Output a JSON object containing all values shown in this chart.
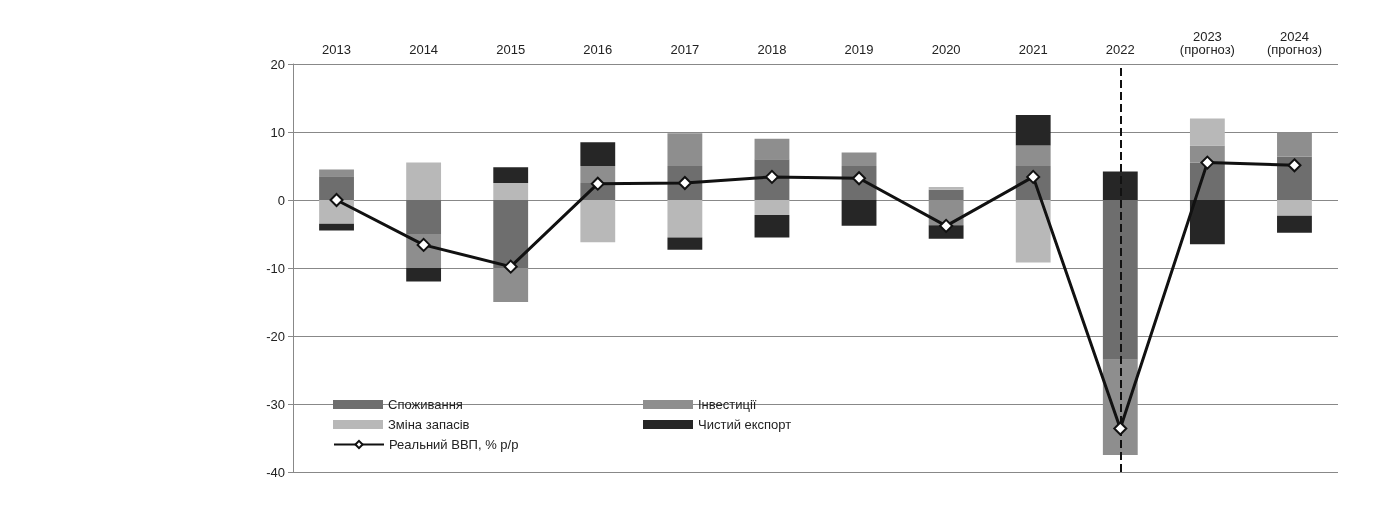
{
  "chart_data": {
    "type": "bar",
    "stacked": true,
    "categories": [
      "2013",
      "2014",
      "2015",
      "2016",
      "2017",
      "2018",
      "2019",
      "2020",
      "2021",
      "2022",
      "2023\n(прогноз)",
      "2024\n(прогноз)"
    ],
    "series": [
      {
        "name": "Споживання",
        "color": "#6e6e6e",
        "values": [
          3.5,
          -5,
          -10,
          2.5,
          5,
          6,
          5,
          1.5,
          5,
          -23.5,
          5.5,
          6.4
        ]
      },
      {
        "name": "Інвестиції",
        "color": "#8e8e8e",
        "values": [
          1,
          -5,
          -5,
          2.5,
          4.8,
          3,
          2,
          -3.7,
          3,
          -14,
          2.5,
          3.5
        ]
      },
      {
        "name": "Зміна запасів",
        "color": "#b8b8b8",
        "values": [
          -3.5,
          5.5,
          2.5,
          -6.2,
          -5.5,
          -2.2,
          0,
          0.4,
          -9.2,
          0,
          4,
          -2.3
        ]
      },
      {
        "name": "Чистий експорт",
        "color": "#262626",
        "values": [
          -1,
          -2,
          2.3,
          3.5,
          -1.8,
          -3.3,
          -3.8,
          -2,
          4.5,
          4.2,
          -6.5,
          -2.5
        ]
      },
      {
        "name": "Реальний ВВП, % р/р",
        "type": "line",
        "color": "#111111",
        "marker": "diamond",
        "values": [
          0,
          -6.6,
          -9.8,
          2.4,
          2.5,
          3.4,
          3.2,
          -3.8,
          3.4,
          -33.6,
          5.5,
          5.1
        ]
      }
    ],
    "ylim": [
      -40,
      20
    ],
    "yticks": [
      -40,
      -30,
      -20,
      -10,
      0,
      10,
      20
    ],
    "grid": "y",
    "legend": "bottom left",
    "ref_lines": [
      {
        "axis": "x",
        "value": "2022",
        "line_style": "dashed",
        "color": "#111111"
      }
    ]
  }
}
